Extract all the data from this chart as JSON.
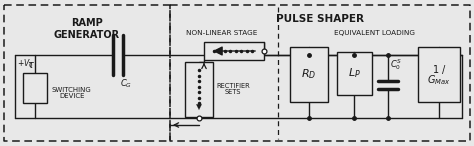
{
  "bg_color": "#e8e8e8",
  "box_color": "#ffffff",
  "line_color": "#1a1a1a",
  "fig_width": 4.74,
  "fig_height": 1.46,
  "dpi": 100,
  "title_ramp": "RAMP\nGENERATOR",
  "title_pulse": "PULSE SHAPER",
  "label_nonlinear": "NON-LINEAR STAGE",
  "label_equiv": "EQUIVALENT LOADING",
  "label_switch": "SWITCHING\nDEVICE",
  "label_rect": "RECTIFIER\nSETS"
}
